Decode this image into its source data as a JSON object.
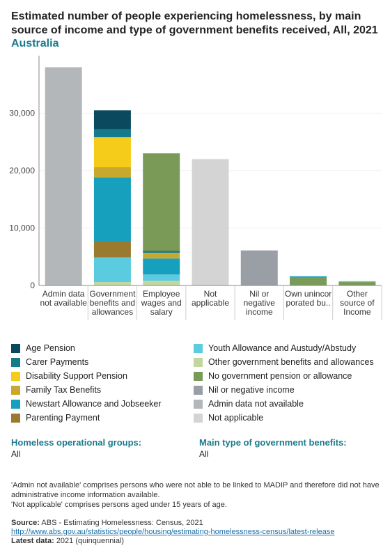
{
  "header": {
    "title": "Estimated number of people experiencing homelessness, by main source of income and type of government benefits received, All, 2021",
    "subtitle": "Australia"
  },
  "chart_data": {
    "type": "bar",
    "stacked": true,
    "ylim": [
      0,
      40000
    ],
    "yticks": [
      0,
      10000,
      20000,
      30000
    ],
    "ytick_labels": [
      "0",
      "10,000",
      "20,000",
      "30,000"
    ],
    "grid": true,
    "categories": [
      [
        "Admin data",
        "not available"
      ],
      [
        "Government",
        "benefits and",
        "allowances"
      ],
      [
        "Employee",
        "wages and",
        "salary"
      ],
      [
        "Not",
        "applicable"
      ],
      [
        "Nil or",
        "negative",
        "income"
      ],
      [
        "Own unincor",
        "porated bu.."
      ],
      [
        "Other",
        "source of",
        "Income"
      ]
    ],
    "series": [
      {
        "name": "Other government benefits and allowances",
        "color": "#c2d6a0",
        "values": [
          0,
          600,
          800,
          0,
          0,
          0,
          0
        ]
      },
      {
        "name": "Youth Allowance and Austudy/Abstudy",
        "color": "#5bcbe0",
        "values": [
          0,
          4300,
          1100,
          0,
          0,
          0,
          0
        ]
      },
      {
        "name": "Parenting Payment",
        "color": "#9a7a2e",
        "values": [
          0,
          2800,
          0,
          0,
          0,
          0,
          0
        ]
      },
      {
        "name": "Newstart Allowance and Jobseeker",
        "color": "#17a0bd",
        "values": [
          0,
          11100,
          2800,
          0,
          0,
          0,
          0
        ]
      },
      {
        "name": "Family Tax Benefits",
        "color": "#c9a82e",
        "values": [
          0,
          1800,
          1000,
          0,
          0,
          0,
          0
        ]
      },
      {
        "name": "Disability Support Pension",
        "color": "#f5cc1a",
        "values": [
          0,
          5200,
          0,
          0,
          0,
          0,
          0
        ]
      },
      {
        "name": "Carer Payments",
        "color": "#147a8c",
        "values": [
          0,
          1400,
          200,
          0,
          0,
          0,
          0
        ]
      },
      {
        "name": "Age Pension",
        "color": "#0b4a5e",
        "values": [
          0,
          3300,
          100,
          0,
          0,
          0,
          0
        ]
      },
      {
        "name": "No government pension or allowance",
        "color": "#7a9a58",
        "values": [
          0,
          0,
          17000,
          0,
          0,
          1400,
          600
        ]
      },
      {
        "name": "Nil or negative income",
        "color": "#9a9ea5",
        "values": [
          0,
          0,
          0,
          0,
          6100,
          0,
          0
        ]
      },
      {
        "name": "Admin data not available",
        "color": "#b4b7ba",
        "values": [
          38000,
          0,
          0,
          0,
          0,
          0,
          0
        ]
      },
      {
        "name": "Not applicable",
        "color": "#d4d4d4",
        "values": [
          0,
          0,
          0,
          22000,
          0,
          0,
          0
        ]
      }
    ],
    "extra_segments": [
      {
        "category_index": 5,
        "name": "Newstart Allowance and Jobseeker",
        "color": "#17a0bd",
        "value": 200
      },
      {
        "category_index": 6,
        "name": "Youth Allowance and Austudy/Abstudy",
        "color": "#5bcbe0",
        "value": 150
      }
    ]
  },
  "legend": {
    "left": [
      {
        "label": "Age Pension",
        "color": "#0b4a5e"
      },
      {
        "label": "Carer Payments",
        "color": "#147a8c"
      },
      {
        "label": "Disability Support Pension",
        "color": "#f5cc1a"
      },
      {
        "label": "Family Tax Benefits",
        "color": "#c9a82e"
      },
      {
        "label": "Newstart Allowance and Jobseeker",
        "color": "#17a0bd"
      },
      {
        "label": "Parenting Payment",
        "color": "#9a7a2e"
      }
    ],
    "right": [
      {
        "label": "Youth Allowance and Austudy/Abstudy",
        "color": "#5bcbe0"
      },
      {
        "label": "Other government benefits and allowances",
        "color": "#c2d6a0"
      },
      {
        "label": "No government pension or allowance",
        "color": "#7a9a58"
      },
      {
        "label": "Nil or negative income",
        "color": "#9a9ea5"
      },
      {
        "label": "Admin data not available",
        "color": "#b4b7ba"
      },
      {
        "label": "Not applicable",
        "color": "#d4d4d4"
      }
    ]
  },
  "filters": {
    "groups_title": "Homeless operational groups:",
    "groups_value": "All",
    "benefits_title": "Main type of government benefits:",
    "benefits_value": "All"
  },
  "notes": [
    "'Admin not available' comprises persons who were not able to be linked to MADIP and therefore did not have administrative income information available.",
    "'Not applicable' comprises persons aged under 15 years of age."
  ],
  "source": {
    "source_label": "Source:",
    "source_text": "ABS - Estimating Homelessness: Census, 2021",
    "link": "http://www.abs.gov.au/statistics/people/housing/estimating-homelessness-census/latest-release",
    "latest_label": "Latest data:",
    "latest_text": "2021 (quinquennial)"
  }
}
